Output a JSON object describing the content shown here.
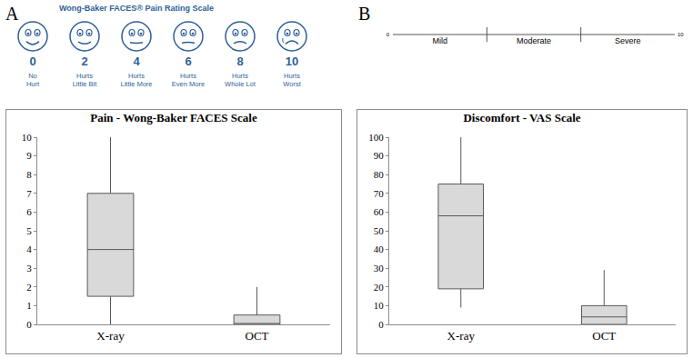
{
  "chart_data": [
    {
      "type": "box",
      "title": "Pain - Wong-Baker FACES Scale",
      "categories": [
        "X-ray",
        "OCT"
      ],
      "min": [
        0,
        0
      ],
      "q1": [
        1.5,
        0
      ],
      "median": [
        4,
        0
      ],
      "q3": [
        7,
        0.5
      ],
      "max": [
        10,
        2
      ],
      "color": "#d9d9d9",
      "ylim": [
        0,
        10
      ],
      "yticks": [
        0,
        1,
        2,
        3,
        4,
        5,
        6,
        7,
        8,
        9,
        10
      ],
      "grid": false
    },
    {
      "type": "box",
      "title": "Discomfort - VAS Scale",
      "categories": [
        "X-ray",
        "OCT"
      ],
      "min": [
        9,
        0
      ],
      "q1": [
        19,
        0
      ],
      "median": [
        58,
        4
      ],
      "q3": [
        75,
        10
      ],
      "max": [
        100,
        29
      ],
      "color": "#d9d9d9",
      "ylim": [
        0,
        100
      ],
      "yticks": [
        0,
        10,
        20,
        30,
        40,
        50,
        60,
        70,
        80,
        90,
        100
      ],
      "grid": false
    }
  ],
  "panels": [
    {
      "label": "A",
      "scale_title": "Wong-Baker FACES® Pain Rating Scale",
      "faces": [
        {
          "score": 0,
          "label": "No Hurt"
        },
        {
          "score": 2,
          "label": "Hurts Little Bit"
        },
        {
          "score": 4,
          "label": "Hurts Little More"
        },
        {
          "score": 6,
          "label": "Hurts Even More"
        },
        {
          "score": 8,
          "label": "Hurts Whole Lot"
        },
        {
          "score": 10,
          "label": "Hurts Worst"
        }
      ]
    },
    {
      "label": "B",
      "scale_start": 0,
      "scale_end": 10,
      "zones": [
        "Mild",
        "Moderate",
        "Severe"
      ]
    }
  ]
}
